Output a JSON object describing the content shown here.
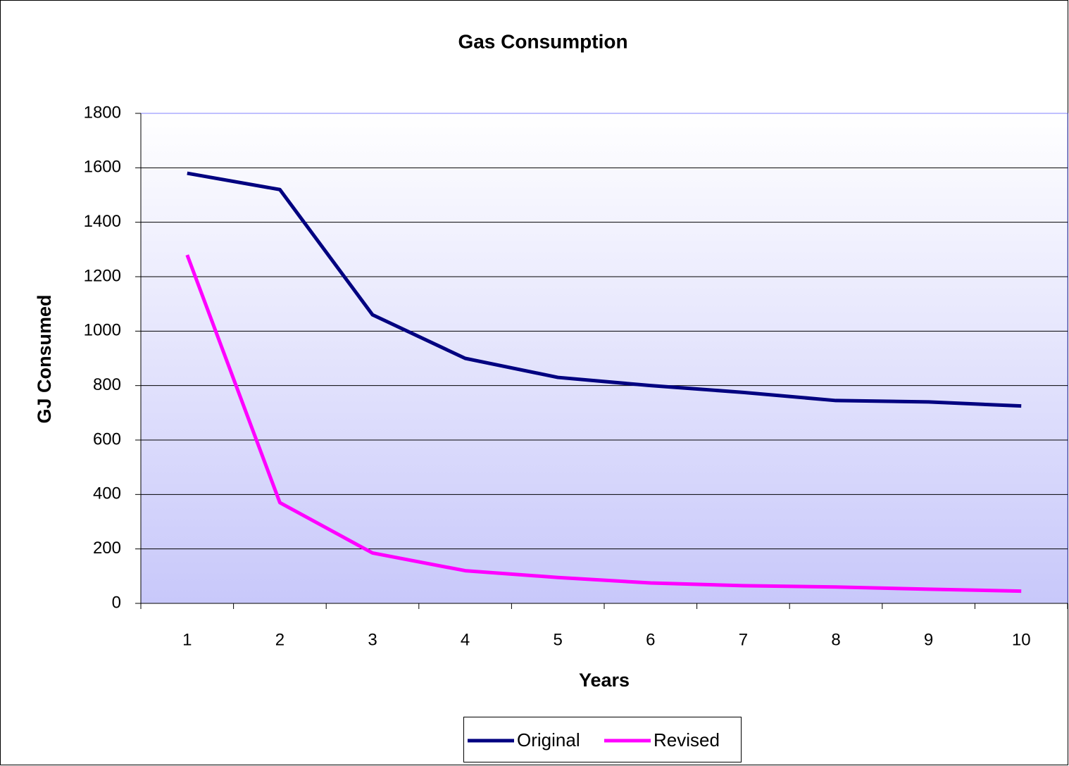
{
  "chart_data": {
    "type": "line",
    "title": "Gas Consumption",
    "x_label": "Years",
    "y_label": "GJ Consumed",
    "categories": [
      "1",
      "2",
      "3",
      "4",
      "5",
      "6",
      "7",
      "8",
      "9",
      "10"
    ],
    "series": [
      {
        "name": "Original",
        "color": "#000080",
        "values": [
          1580,
          1520,
          1060,
          900,
          830,
          800,
          775,
          745,
          740,
          725
        ]
      },
      {
        "name": "Revised",
        "color": "#ff00ff",
        "values": [
          1280,
          370,
          185,
          120,
          95,
          75,
          65,
          60,
          52,
          45
        ]
      }
    ],
    "ylim": [
      0,
      1800
    ],
    "yticks": [
      0,
      200,
      400,
      600,
      800,
      1000,
      1200,
      1400,
      1600,
      1800
    ],
    "grid": true,
    "legend": "bottom"
  }
}
